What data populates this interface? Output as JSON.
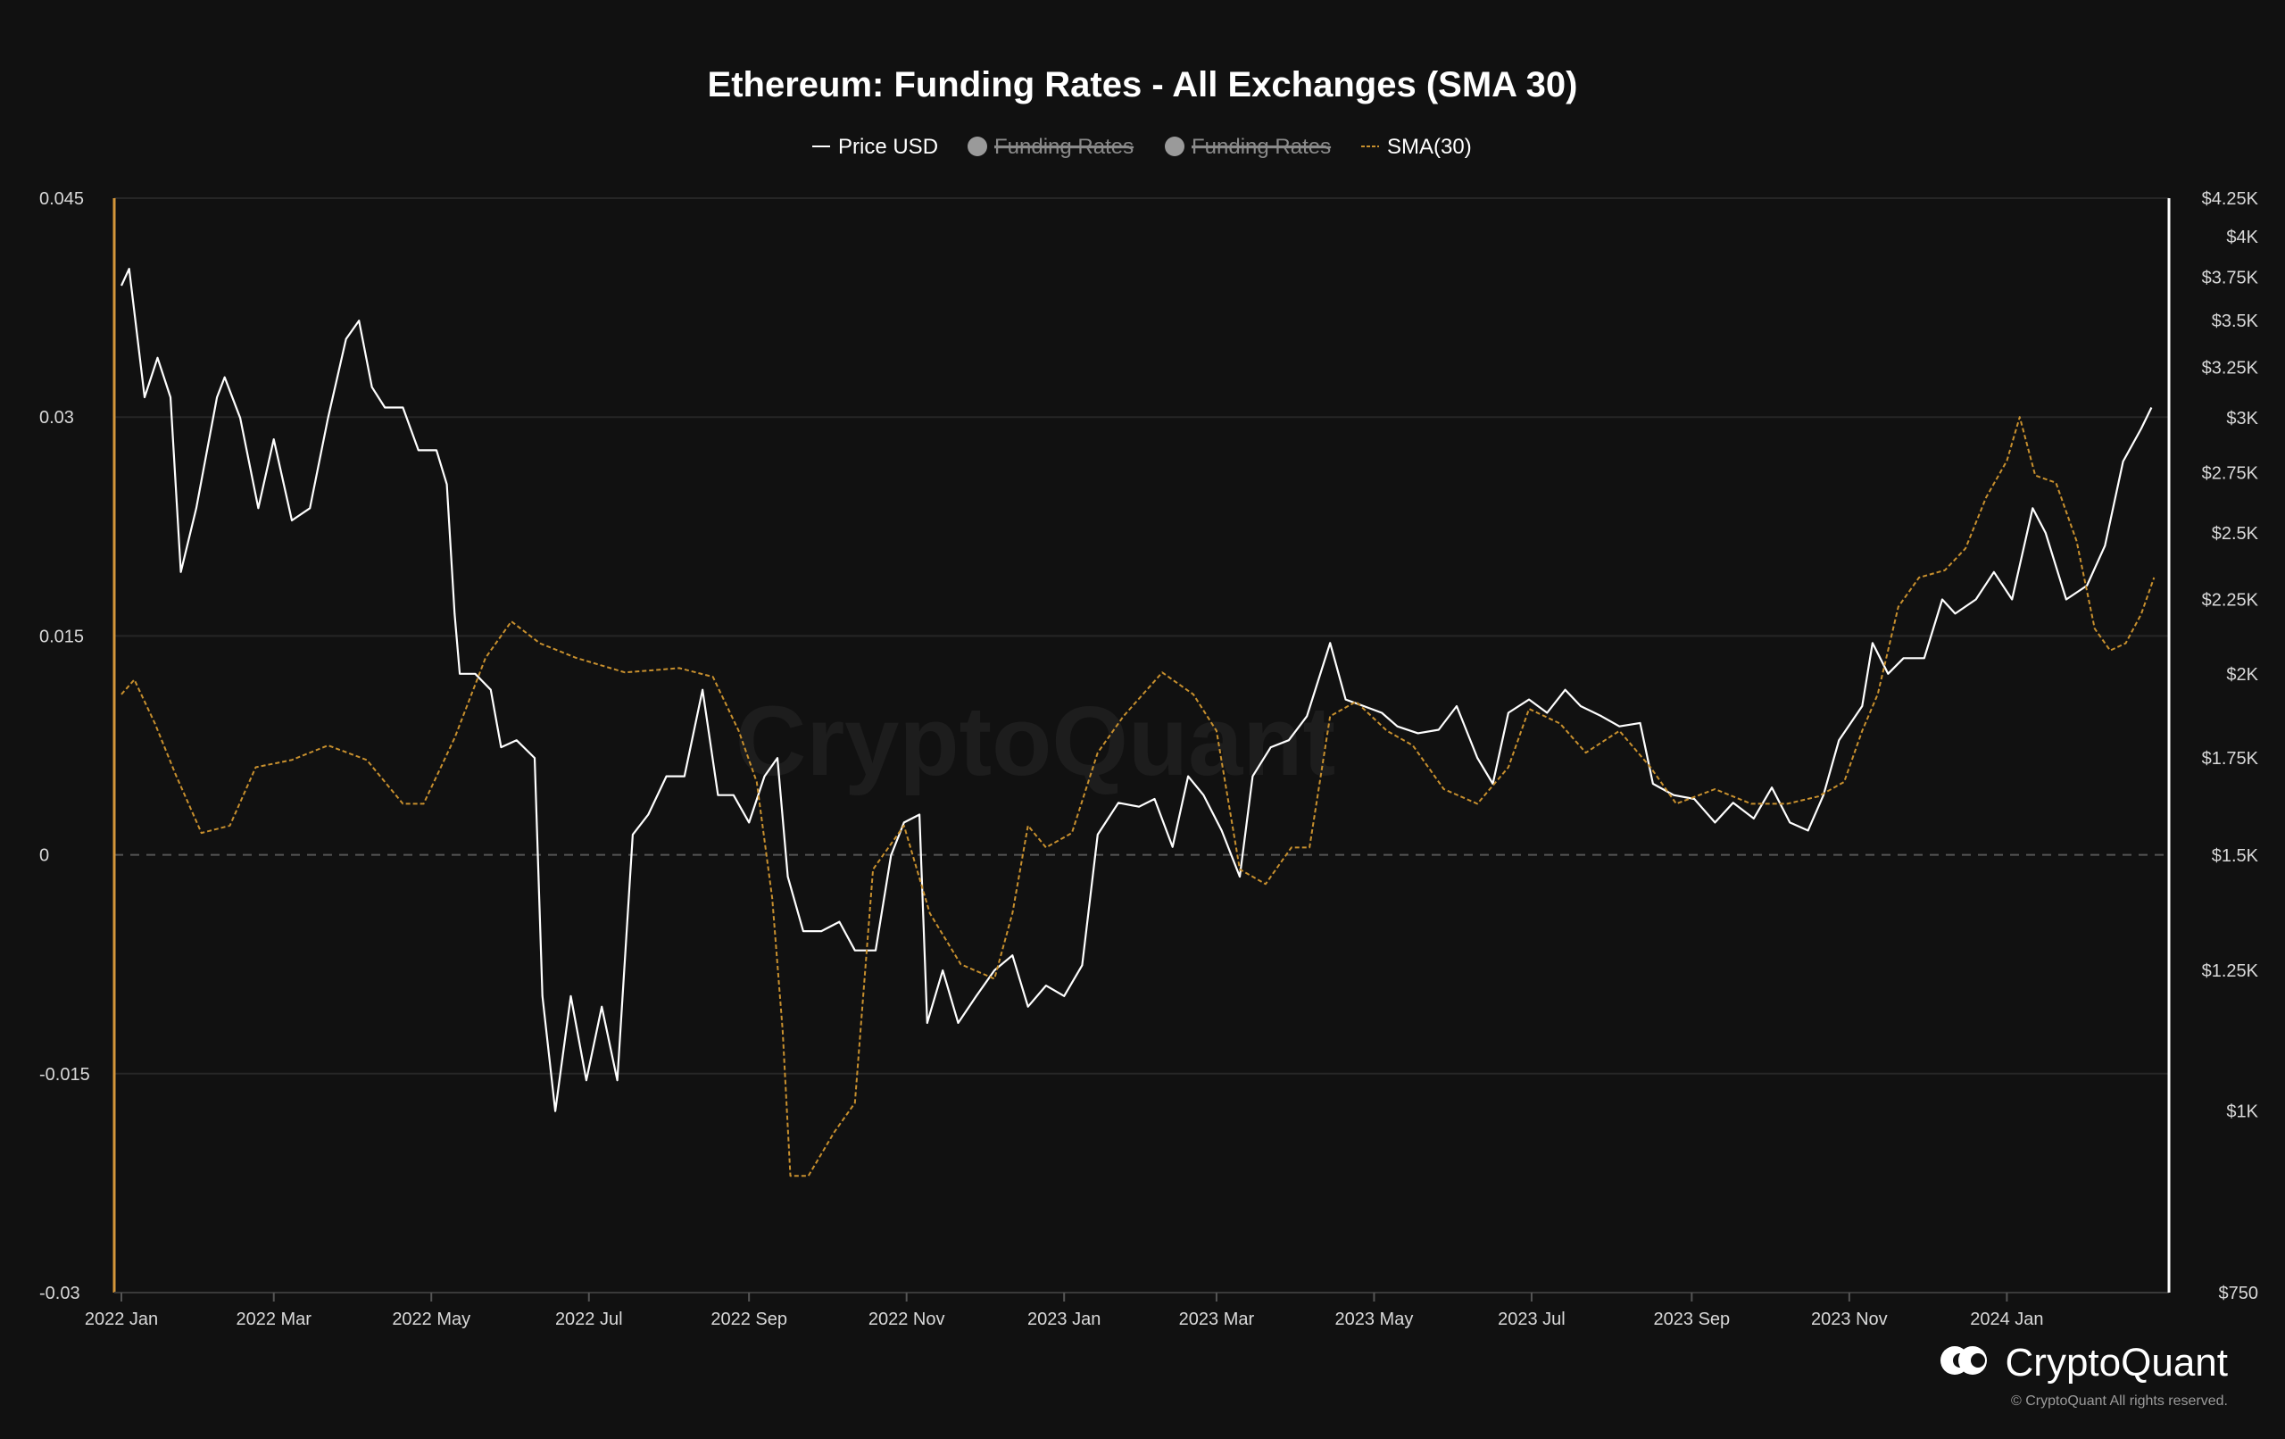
{
  "chart_data": {
    "type": "line",
    "title": "Ethereum: Funding Rates - All Exchanges (SMA 30)",
    "legend": {
      "placement": "top-center",
      "items": [
        {
          "label": "Price USD",
          "style": "line",
          "color": "#ffffff",
          "enabled": true
        },
        {
          "label": "Funding Rates",
          "style": "dot",
          "color": "#9a9a9a",
          "enabled": false
        },
        {
          "label": "Funding Rates",
          "style": "dot",
          "color": "#9a9a9a",
          "enabled": false
        },
        {
          "label": "SMA(30)",
          "style": "dashed",
          "color": "#c8902e",
          "enabled": true
        }
      ]
    },
    "x_axis": {
      "range": [
        "2022-01-01",
        "2024-03-01"
      ],
      "tick_labels": [
        "2022 Jan",
        "2022 Mar",
        "2022 May",
        "2022 Jul",
        "2022 Sep",
        "2022 Nov",
        "2023 Jan",
        "2023 Mar",
        "2023 May",
        "2023 Jul",
        "2023 Sep",
        "2023 Nov",
        "2024 Jan"
      ]
    },
    "y_left": {
      "label": "",
      "range": [
        -0.03,
        0.045
      ],
      "tick_labels": [
        "0.045",
        "0.03",
        "0.015",
        "0",
        "-0.015",
        "-0.03"
      ],
      "ticks": [
        0.045,
        0.03,
        0.015,
        0,
        -0.015,
        -0.03
      ]
    },
    "y_right": {
      "label": "",
      "scale": "log",
      "range": [
        750,
        4250
      ],
      "tick_labels": [
        "$4.25K",
        "$4K",
        "$3.75K",
        "$3.5K",
        "$3.25K",
        "$3K",
        "$2.75K",
        "$2.5K",
        "$2.25K",
        "$2K",
        "$1.75K",
        "$1.5K",
        "$1.25K",
        "$1K",
        "$750"
      ],
      "ticks": [
        4250,
        4000,
        3750,
        3500,
        3250,
        3000,
        2750,
        2500,
        2250,
        2000,
        1750,
        1500,
        1250,
        1000,
        750
      ]
    },
    "grid": true,
    "zero_line": "dashed",
    "series": [
      {
        "name": "Price USD",
        "axis": "right",
        "color": "#ffffff",
        "style": "solid",
        "points": [
          [
            "2022-01-01",
            3700
          ],
          [
            "2022-01-04",
            3800
          ],
          [
            "2022-01-10",
            3100
          ],
          [
            "2022-01-15",
            3300
          ],
          [
            "2022-01-20",
            3100
          ],
          [
            "2022-01-24",
            2350
          ],
          [
            "2022-01-30",
            2600
          ],
          [
            "2022-02-07",
            3100
          ],
          [
            "2022-02-10",
            3200
          ],
          [
            "2022-02-16",
            3000
          ],
          [
            "2022-02-23",
            2600
          ],
          [
            "2022-03-01",
            2900
          ],
          [
            "2022-03-08",
            2550
          ],
          [
            "2022-03-15",
            2600
          ],
          [
            "2022-03-22",
            3000
          ],
          [
            "2022-03-29",
            3400
          ],
          [
            "2022-04-03",
            3500
          ],
          [
            "2022-04-08",
            3150
          ],
          [
            "2022-04-13",
            3050
          ],
          [
            "2022-04-20",
            3050
          ],
          [
            "2022-04-26",
            2850
          ],
          [
            "2022-05-03",
            2850
          ],
          [
            "2022-05-07",
            2700
          ],
          [
            "2022-05-10",
            2200
          ],
          [
            "2022-05-12",
            2000
          ],
          [
            "2022-05-18",
            2000
          ],
          [
            "2022-05-24",
            1950
          ],
          [
            "2022-05-28",
            1780
          ],
          [
            "2022-06-03",
            1800
          ],
          [
            "2022-06-10",
            1750
          ],
          [
            "2022-06-13",
            1200
          ],
          [
            "2022-06-18",
            1000
          ],
          [
            "2022-06-24",
            1200
          ],
          [
            "2022-06-30",
            1050
          ],
          [
            "2022-07-06",
            1180
          ],
          [
            "2022-07-12",
            1050
          ],
          [
            "2022-07-18",
            1550
          ],
          [
            "2022-07-24",
            1600
          ],
          [
            "2022-07-31",
            1700
          ],
          [
            "2022-08-07",
            1700
          ],
          [
            "2022-08-14",
            1950
          ],
          [
            "2022-08-20",
            1650
          ],
          [
            "2022-08-26",
            1650
          ],
          [
            "2022-09-01",
            1580
          ],
          [
            "2022-09-07",
            1700
          ],
          [
            "2022-09-12",
            1750
          ],
          [
            "2022-09-16",
            1450
          ],
          [
            "2022-09-22",
            1330
          ],
          [
            "2022-09-29",
            1330
          ],
          [
            "2022-10-06",
            1350
          ],
          [
            "2022-10-12",
            1290
          ],
          [
            "2022-10-20",
            1290
          ],
          [
            "2022-10-26",
            1500
          ],
          [
            "2022-10-31",
            1580
          ],
          [
            "2022-11-06",
            1600
          ],
          [
            "2022-11-09",
            1150
          ],
          [
            "2022-11-15",
            1250
          ],
          [
            "2022-11-21",
            1150
          ],
          [
            "2022-11-28",
            1200
          ],
          [
            "2022-12-05",
            1250
          ],
          [
            "2022-12-12",
            1280
          ],
          [
            "2022-12-18",
            1180
          ],
          [
            "2022-12-25",
            1220
          ],
          [
            "2023-01-01",
            1200
          ],
          [
            "2023-01-08",
            1260
          ],
          [
            "2023-01-14",
            1550
          ],
          [
            "2023-01-22",
            1630
          ],
          [
            "2023-01-30",
            1620
          ],
          [
            "2023-02-05",
            1640
          ],
          [
            "2023-02-12",
            1520
          ],
          [
            "2023-02-18",
            1700
          ],
          [
            "2023-02-24",
            1650
          ],
          [
            "2023-03-03",
            1560
          ],
          [
            "2023-03-10",
            1450
          ],
          [
            "2023-03-15",
            1700
          ],
          [
            "2023-03-22",
            1780
          ],
          [
            "2023-03-29",
            1800
          ],
          [
            "2023-04-05",
            1870
          ],
          [
            "2023-04-14",
            2100
          ],
          [
            "2023-04-20",
            1920
          ],
          [
            "2023-04-27",
            1900
          ],
          [
            "2023-05-04",
            1880
          ],
          [
            "2023-05-10",
            1840
          ],
          [
            "2023-05-18",
            1820
          ],
          [
            "2023-05-26",
            1830
          ],
          [
            "2023-06-02",
            1900
          ],
          [
            "2023-06-10",
            1750
          ],
          [
            "2023-06-16",
            1680
          ],
          [
            "2023-06-22",
            1880
          ],
          [
            "2023-06-30",
            1920
          ],
          [
            "2023-07-07",
            1880
          ],
          [
            "2023-07-14",
            1950
          ],
          [
            "2023-07-20",
            1900
          ],
          [
            "2023-07-28",
            1870
          ],
          [
            "2023-08-04",
            1840
          ],
          [
            "2023-08-12",
            1850
          ],
          [
            "2023-08-17",
            1680
          ],
          [
            "2023-08-25",
            1650
          ],
          [
            "2023-09-02",
            1640
          ],
          [
            "2023-09-10",
            1580
          ],
          [
            "2023-09-17",
            1630
          ],
          [
            "2023-09-25",
            1590
          ],
          [
            "2023-10-02",
            1670
          ],
          [
            "2023-10-09",
            1580
          ],
          [
            "2023-10-16",
            1560
          ],
          [
            "2023-10-22",
            1650
          ],
          [
            "2023-10-28",
            1800
          ],
          [
            "2023-11-06",
            1900
          ],
          [
            "2023-11-10",
            2100
          ],
          [
            "2023-11-16",
            2000
          ],
          [
            "2023-11-22",
            2050
          ],
          [
            "2023-11-30",
            2050
          ],
          [
            "2023-12-07",
            2250
          ],
          [
            "2023-12-12",
            2200
          ],
          [
            "2023-12-20",
            2250
          ],
          [
            "2023-12-27",
            2350
          ],
          [
            "2024-01-03",
            2250
          ],
          [
            "2024-01-11",
            2600
          ],
          [
            "2024-01-16",
            2500
          ],
          [
            "2024-01-24",
            2250
          ],
          [
            "2024-02-01",
            2300
          ],
          [
            "2024-02-08",
            2450
          ],
          [
            "2024-02-15",
            2800
          ],
          [
            "2024-02-22",
            2950
          ],
          [
            "2024-02-26",
            3050
          ]
        ]
      },
      {
        "name": "SMA(30)",
        "axis": "left",
        "color": "#c8902e",
        "style": "dashed",
        "points": [
          [
            "2022-01-01",
            0.011
          ],
          [
            "2022-01-06",
            0.012
          ],
          [
            "2022-01-14",
            0.009
          ],
          [
            "2022-01-22",
            0.0055
          ],
          [
            "2022-02-01",
            0.0015
          ],
          [
            "2022-02-12",
            0.002
          ],
          [
            "2022-02-22",
            0.006
          ],
          [
            "2022-03-08",
            0.0065
          ],
          [
            "2022-03-22",
            0.0075
          ],
          [
            "2022-04-06",
            0.0065
          ],
          [
            "2022-04-20",
            0.0035
          ],
          [
            "2022-04-28",
            0.0035
          ],
          [
            "2022-05-10",
            0.008
          ],
          [
            "2022-05-22",
            0.0135
          ],
          [
            "2022-06-01",
            0.016
          ],
          [
            "2022-06-12",
            0.0145
          ],
          [
            "2022-06-26",
            0.0135
          ],
          [
            "2022-07-15",
            0.0125
          ],
          [
            "2022-08-05",
            0.0128
          ],
          [
            "2022-08-18",
            0.0122
          ],
          [
            "2022-08-28",
            0.0085
          ],
          [
            "2022-09-04",
            0.005
          ],
          [
            "2022-09-10",
            -0.003
          ],
          [
            "2022-09-14",
            -0.012
          ],
          [
            "2022-09-17",
            -0.022
          ],
          [
            "2022-09-24",
            -0.022
          ],
          [
            "2022-10-04",
            -0.019
          ],
          [
            "2022-10-12",
            -0.017
          ],
          [
            "2022-10-19",
            -0.001
          ],
          [
            "2022-10-31",
            0.002
          ],
          [
            "2022-11-10",
            -0.004
          ],
          [
            "2022-11-22",
            -0.0075
          ],
          [
            "2022-12-05",
            -0.0085
          ],
          [
            "2022-12-12",
            -0.004
          ],
          [
            "2022-12-18",
            0.002
          ],
          [
            "2022-12-25",
            0.0005
          ],
          [
            "2023-01-04",
            0.0015
          ],
          [
            "2023-01-14",
            0.007
          ],
          [
            "2023-01-24",
            0.0095
          ],
          [
            "2023-02-08",
            0.0125
          ],
          [
            "2023-02-20",
            0.011
          ],
          [
            "2023-03-01",
            0.0085
          ],
          [
            "2023-03-10",
            -0.001
          ],
          [
            "2023-03-20",
            -0.002
          ],
          [
            "2023-03-30",
            0.0005
          ],
          [
            "2023-04-06",
            0.0005
          ],
          [
            "2023-04-14",
            0.0095
          ],
          [
            "2023-04-24",
            0.0105
          ],
          [
            "2023-05-06",
            0.0085
          ],
          [
            "2023-05-16",
            0.0075
          ],
          [
            "2023-05-28",
            0.0045
          ],
          [
            "2023-06-10",
            0.0035
          ],
          [
            "2023-06-22",
            0.006
          ],
          [
            "2023-06-30",
            0.01
          ],
          [
            "2023-07-12",
            0.009
          ],
          [
            "2023-07-22",
            0.007
          ],
          [
            "2023-08-04",
            0.0085
          ],
          [
            "2023-08-16",
            0.006
          ],
          [
            "2023-08-26",
            0.0035
          ],
          [
            "2023-09-10",
            0.0045
          ],
          [
            "2023-09-24",
            0.0035
          ],
          [
            "2023-10-08",
            0.0035
          ],
          [
            "2023-10-20",
            0.004
          ],
          [
            "2023-10-30",
            0.005
          ],
          [
            "2023-11-06",
            0.0085
          ],
          [
            "2023-11-12",
            0.011
          ],
          [
            "2023-11-20",
            0.017
          ],
          [
            "2023-11-28",
            0.019
          ],
          [
            "2023-12-08",
            0.0195
          ],
          [
            "2023-12-16",
            0.021
          ],
          [
            "2023-12-24",
            0.0245
          ],
          [
            "2024-01-01",
            0.027
          ],
          [
            "2024-01-06",
            0.03
          ],
          [
            "2024-01-12",
            0.026
          ],
          [
            "2024-01-20",
            0.0255
          ],
          [
            "2024-01-28",
            0.0215
          ],
          [
            "2024-02-04",
            0.0155
          ],
          [
            "2024-02-10",
            0.014
          ],
          [
            "2024-02-16",
            0.0145
          ],
          [
            "2024-02-22",
            0.0165
          ],
          [
            "2024-02-27",
            0.019
          ]
        ]
      }
    ]
  },
  "branding": {
    "watermark": "CryptoQuant",
    "logo_text": "CryptoQuant",
    "copyright": "© CryptoQuant All rights reserved."
  }
}
